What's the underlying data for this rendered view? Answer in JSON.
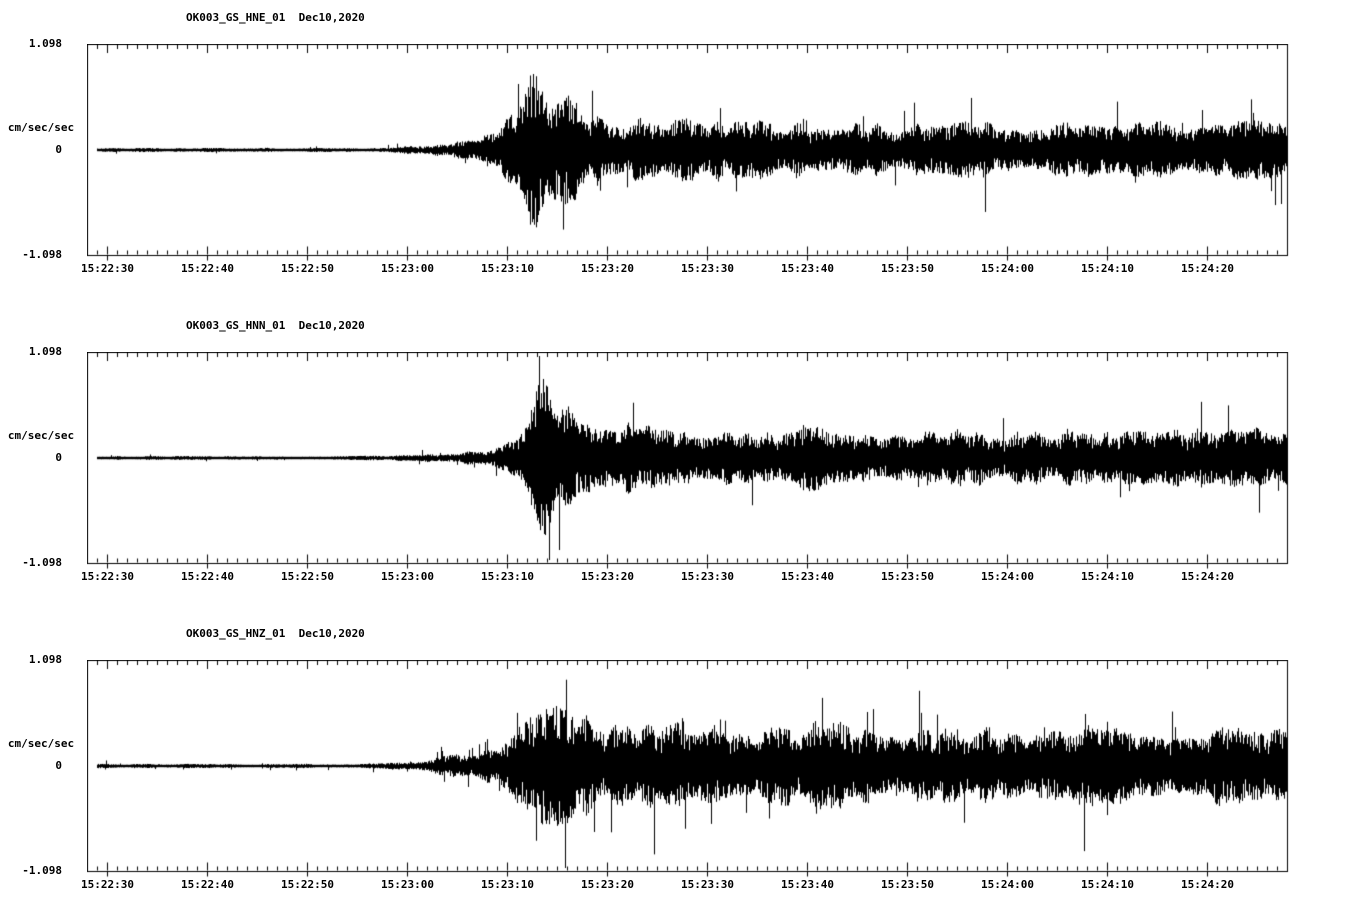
{
  "meta": {
    "background_color": "#ffffff",
    "trace_color": "#000000",
    "units": "cm/sec/sec"
  },
  "chart_data": [
    {
      "type": "line",
      "subtype": "seismogram",
      "title": "OK003_GS_HNE_01  Dec10,2020",
      "station_channel": "OK003_GS_HNE_01",
      "date": "Dec10,2020",
      "ylabel": "cm/sec/sec",
      "ylim": [
        -1.098,
        1.098
      ],
      "ytick_labels": [
        "1.098",
        "0",
        "-1.098"
      ],
      "ytick_values": [
        1.098,
        0,
        -1.098
      ],
      "x_range_sec": 120,
      "x_tick_labels": [
        "15:22:30",
        "15:22:40",
        "15:22:50",
        "15:23:00",
        "15:23:10",
        "15:23:20",
        "15:23:30",
        "15:23:40",
        "15:23:50",
        "15:24:00",
        "15:24:10",
        "15:24:20"
      ],
      "x_tick_offsets_sec": [
        2,
        12,
        22,
        32,
        42,
        52,
        62,
        72,
        82,
        92,
        102,
        112
      ],
      "minor_tick_interval_sec": 1,
      "envelope": {
        "t_sec": [
          0,
          25,
          30,
          33,
          36,
          39,
          41,
          43,
          44.5,
          46,
          48,
          50,
          53,
          57,
          62,
          68,
          75,
          82,
          90,
          98,
          106,
          113,
          120
        ],
        "amp": [
          0.022,
          0.022,
          0.028,
          0.045,
          0.07,
          0.13,
          0.22,
          0.45,
          0.95,
          0.8,
          0.55,
          0.42,
          0.36,
          0.3,
          0.33,
          0.28,
          0.3,
          0.27,
          0.3,
          0.28,
          0.31,
          0.3,
          0.33
        ]
      }
    },
    {
      "type": "line",
      "subtype": "seismogram",
      "title": "OK003_GS_HNN_01  Dec10,2020",
      "station_channel": "OK003_GS_HNN_01",
      "date": "Dec10,2020",
      "ylabel": "cm/sec/sec",
      "ylim": [
        -1.098,
        1.098
      ],
      "ytick_labels": [
        "1.098",
        "0",
        "-1.098"
      ],
      "ytick_values": [
        1.098,
        0,
        -1.098
      ],
      "x_range_sec": 120,
      "x_tick_labels": [
        "15:22:30",
        "15:22:40",
        "15:22:50",
        "15:23:00",
        "15:23:10",
        "15:23:20",
        "15:23:30",
        "15:23:40",
        "15:23:50",
        "15:24:00",
        "15:24:10",
        "15:24:20"
      ],
      "x_tick_offsets_sec": [
        2,
        12,
        22,
        32,
        42,
        52,
        62,
        72,
        82,
        92,
        102,
        112
      ],
      "minor_tick_interval_sec": 1,
      "envelope": {
        "t_sec": [
          0,
          25,
          30,
          34,
          37,
          40,
          42,
          44,
          45.5,
          47,
          49,
          52,
          55,
          60,
          65,
          70,
          74,
          78,
          84,
          90,
          96,
          103,
          110,
          116,
          120
        ],
        "amp": [
          0.02,
          0.02,
          0.025,
          0.04,
          0.06,
          0.1,
          0.18,
          0.4,
          0.92,
          0.75,
          0.5,
          0.4,
          0.34,
          0.3,
          0.28,
          0.33,
          0.4,
          0.3,
          0.33,
          0.28,
          0.3,
          0.28,
          0.31,
          0.33,
          0.34
        ]
      }
    },
    {
      "type": "line",
      "subtype": "seismogram",
      "title": "OK003_GS_HNZ_01  Dec10,2020",
      "station_channel": "OK003_GS_HNZ_01",
      "date": "Dec10,2020",
      "ylabel": "cm/sec/sec",
      "ylim": [
        -1.098,
        1.098
      ],
      "ytick_labels": [
        "1.098",
        "0",
        "-1.098"
      ],
      "ytick_values": [
        1.098,
        0,
        -1.098
      ],
      "x_range_sec": 120,
      "x_tick_labels": [
        "15:22:30",
        "15:22:40",
        "15:22:50",
        "15:23:00",
        "15:23:10",
        "15:23:20",
        "15:23:30",
        "15:23:40",
        "15:23:50",
        "15:24:00",
        "15:24:10",
        "15:24:20"
      ],
      "x_tick_offsets_sec": [
        2,
        12,
        22,
        32,
        42,
        52,
        62,
        72,
        82,
        92,
        102,
        112
      ],
      "minor_tick_interval_sec": 1,
      "envelope": {
        "t_sec": [
          0,
          24,
          30,
          33,
          36,
          39,
          42,
          44,
          45.5,
          47,
          50,
          54,
          58,
          63,
          68,
          72,
          74.5,
          77,
          82,
          88,
          94,
          100,
          106,
          112,
          117,
          120
        ],
        "amp": [
          0.022,
          0.022,
          0.03,
          0.06,
          0.1,
          0.17,
          0.3,
          0.55,
          0.9,
          0.75,
          0.55,
          0.48,
          0.42,
          0.4,
          0.38,
          0.42,
          0.6,
          0.42,
          0.4,
          0.42,
          0.38,
          0.4,
          0.38,
          0.4,
          0.42,
          0.4
        ]
      }
    }
  ]
}
